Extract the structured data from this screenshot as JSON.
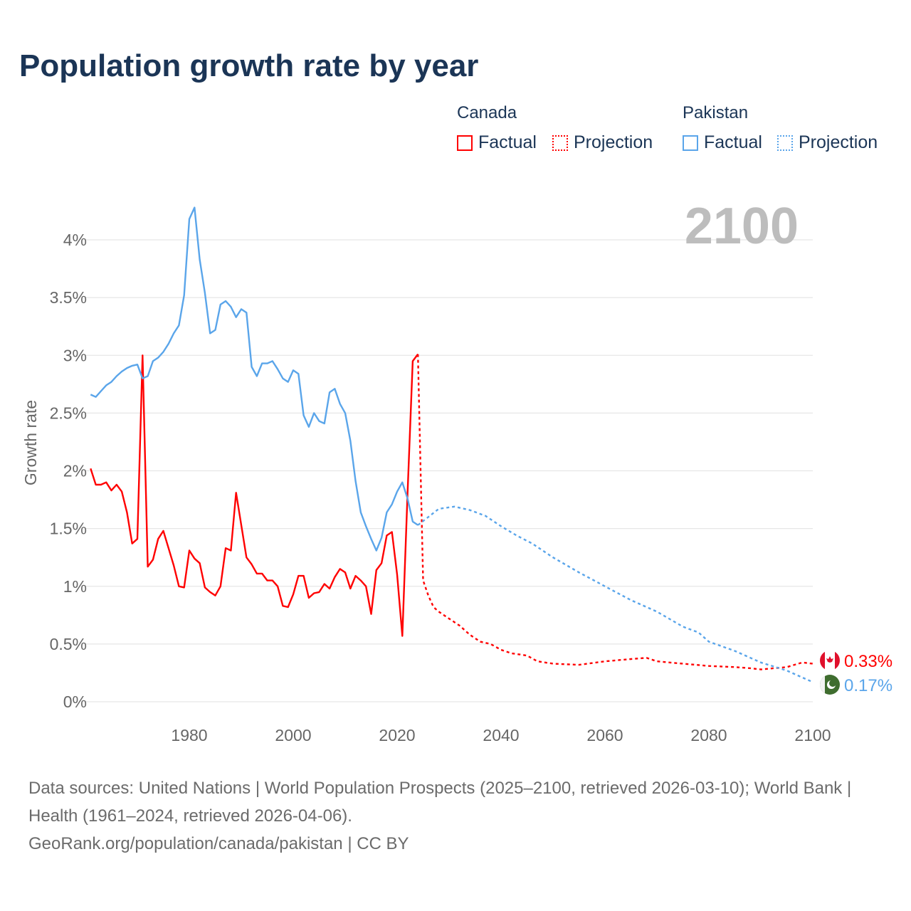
{
  "title": "Population growth rate by year",
  "legend": {
    "groups": [
      {
        "country": "Canada",
        "factual": "Factual",
        "projection": "Projection",
        "color": "#ff0000"
      },
      {
        "country": "Pakistan",
        "factual": "Factual",
        "projection": "Projection",
        "color": "#5aa5ea"
      }
    ]
  },
  "footer": {
    "sources": "Data sources: United Nations | World Population Prospects (2025–2100, retrieved 2026-03-10); World Bank | Health (1961–2024, retrieved 2026-04-06).",
    "credit": "GeoRank.org/population/canada/pakistan | CC BY"
  },
  "chart_data": {
    "type": "line",
    "title": "Population growth rate by year",
    "year_label": "2100",
    "xlabel": "",
    "ylabel": "Growth rate",
    "xlim": [
      1961,
      2100
    ],
    "ylim": [
      0,
      4.3
    ],
    "x_ticks": [
      "1980",
      "2000",
      "2020",
      "2040",
      "2060",
      "2080",
      "2100"
    ],
    "x_tick_values": [
      1980,
      2000,
      2020,
      2040,
      2060,
      2080,
      2100
    ],
    "y_ticks": [
      "0%",
      "0.5%",
      "1%",
      "1.5%",
      "2%",
      "2.5%",
      "3%",
      "3.5%",
      "4%"
    ],
    "y_tick_values": [
      0,
      0.5,
      1,
      1.5,
      2,
      2.5,
      3,
      3.5,
      4
    ],
    "grid": true,
    "legend_position": "top-right",
    "series": [
      {
        "name": "Canada Factual",
        "color": "#ff0000",
        "style": "solid",
        "x": [
          1961,
          1962,
          1963,
          1964,
          1965,
          1966,
          1967,
          1968,
          1969,
          1970,
          1971,
          1972,
          1973,
          1974,
          1975,
          1976,
          1977,
          1978,
          1979,
          1980,
          1981,
          1982,
          1983,
          1984,
          1985,
          1986,
          1987,
          1988,
          1989,
          1990,
          1991,
          1992,
          1993,
          1994,
          1995,
          1996,
          1997,
          1998,
          1999,
          2000,
          2001,
          2002,
          2003,
          2004,
          2005,
          2006,
          2007,
          2008,
          2009,
          2010,
          2011,
          2012,
          2013,
          2014,
          2015,
          2016,
          2017,
          2018,
          2019,
          2020,
          2021,
          2022,
          2023,
          2024
        ],
        "y": [
          2.02,
          1.88,
          1.88,
          1.9,
          1.83,
          1.88,
          1.82,
          1.64,
          1.37,
          1.41,
          3.0,
          1.17,
          1.23,
          1.41,
          1.48,
          1.33,
          1.18,
          1.0,
          0.99,
          1.31,
          1.24,
          1.2,
          0.99,
          0.95,
          0.92,
          1.0,
          1.33,
          1.31,
          1.81,
          1.53,
          1.25,
          1.19,
          1.11,
          1.11,
          1.05,
          1.05,
          1.0,
          0.83,
          0.82,
          0.93,
          1.09,
          1.09,
          0.9,
          0.94,
          0.95,
          1.02,
          0.98,
          1.08,
          1.15,
          1.12,
          0.98,
          1.09,
          1.05,
          1.0,
          0.76,
          1.14,
          1.2,
          1.44,
          1.47,
          1.1,
          0.57,
          1.8,
          2.95,
          3.01
        ]
      },
      {
        "name": "Canada Projection",
        "color": "#ff0000",
        "style": "dotted",
        "x": [
          2024,
          2025,
          2026,
          2027,
          2028,
          2030,
          2032,
          2034,
          2036,
          2038,
          2040,
          2042,
          2045,
          2047,
          2050,
          2055,
          2060,
          2065,
          2068,
          2070,
          2075,
          2080,
          2085,
          2088,
          2090,
          2095,
          2098,
          2100
        ],
        "y": [
          3.01,
          1.05,
          0.92,
          0.82,
          0.78,
          0.72,
          0.66,
          0.58,
          0.52,
          0.5,
          0.45,
          0.42,
          0.4,
          0.35,
          0.33,
          0.32,
          0.35,
          0.37,
          0.38,
          0.35,
          0.33,
          0.31,
          0.3,
          0.29,
          0.28,
          0.3,
          0.34,
          0.33
        ]
      },
      {
        "name": "Pakistan Factual",
        "color": "#5aa5ea",
        "style": "solid",
        "x": [
          1961,
          1962,
          1963,
          1964,
          1965,
          1966,
          1967,
          1968,
          1969,
          1970,
          1971,
          1972,
          1973,
          1974,
          1975,
          1976,
          1977,
          1978,
          1979,
          1980,
          1981,
          1982,
          1983,
          1984,
          1985,
          1986,
          1987,
          1988,
          1989,
          1990,
          1991,
          1992,
          1993,
          1994,
          1995,
          1996,
          1997,
          1998,
          1999,
          2000,
          2001,
          2002,
          2003,
          2004,
          2005,
          2006,
          2007,
          2008,
          2009,
          2010,
          2011,
          2012,
          2013,
          2014,
          2015,
          2016,
          2017,
          2018,
          2019,
          2020,
          2021,
          2022,
          2023,
          2024
        ],
        "y": [
          2.66,
          2.64,
          2.69,
          2.74,
          2.77,
          2.82,
          2.86,
          2.89,
          2.91,
          2.92,
          2.8,
          2.82,
          2.95,
          2.98,
          3.03,
          3.1,
          3.19,
          3.26,
          3.52,
          4.18,
          4.28,
          3.83,
          3.54,
          3.19,
          3.22,
          3.44,
          3.47,
          3.42,
          3.33,
          3.4,
          3.37,
          2.9,
          2.82,
          2.93,
          2.93,
          2.95,
          2.88,
          2.8,
          2.77,
          2.87,
          2.84,
          2.48,
          2.38,
          2.5,
          2.43,
          2.41,
          2.68,
          2.71,
          2.58,
          2.5,
          2.26,
          1.91,
          1.64,
          1.52,
          1.41,
          1.31,
          1.42,
          1.64,
          1.71,
          1.82,
          1.9,
          1.76,
          1.56,
          1.53
        ]
      },
      {
        "name": "Pakistan Projection",
        "color": "#5aa5ea",
        "style": "dotted",
        "x": [
          2024,
          2026,
          2028,
          2031,
          2034,
          2037,
          2040,
          2043,
          2046,
          2050,
          2055,
          2060,
          2065,
          2070,
          2075,
          2078,
          2080,
          2085,
          2088,
          2090,
          2095,
          2100
        ],
        "y": [
          1.53,
          1.6,
          1.67,
          1.69,
          1.66,
          1.61,
          1.52,
          1.44,
          1.37,
          1.25,
          1.12,
          1.0,
          0.88,
          0.78,
          0.65,
          0.6,
          0.52,
          0.44,
          0.38,
          0.34,
          0.27,
          0.17
        ]
      }
    ],
    "end_labels": [
      {
        "country": "Canada",
        "value": "0.33%",
        "color": "#ff0000",
        "flag": "canada-flag"
      },
      {
        "country": "Pakistan",
        "value": "0.17%",
        "color": "#5aa5ea",
        "flag": "pakistan-flag"
      }
    ]
  }
}
